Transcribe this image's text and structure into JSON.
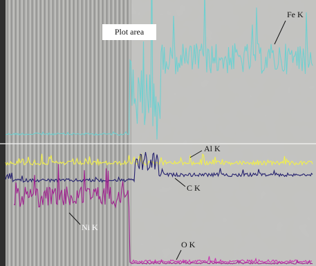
{
  "callout": "Plot area",
  "labels": {
    "fe": "Fe K",
    "al": "Al K",
    "c": "C K",
    "ni": "Ni K",
    "o": "O K"
  }
}
